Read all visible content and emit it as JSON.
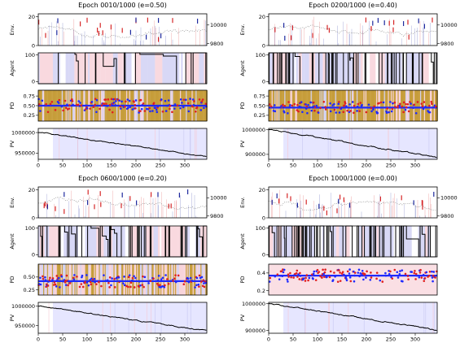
{
  "figure": {
    "colors": {
      "price_line": "#7a7a7a",
      "buy": "#d62728",
      "sell": "#1f2a9e",
      "hold_band": "#c8c8f2",
      "pink_band": "#f6c9d2",
      "gold_band": "#b8860b",
      "pd_blue": "#1f2aff",
      "pd_red": "#e02020",
      "pv_line": "#000000",
      "pv_fill": "#dcdcff"
    }
  },
  "chart_data": [
    {
      "type": "line",
      "title": "Epoch 0010/1000 (e=0.50)",
      "x_range": [
        0,
        345
      ],
      "x_ticks": [
        "0",
        "50",
        "100",
        "150",
        "200",
        "250",
        "300"
      ],
      "x_tick_values": [
        0,
        50,
        100,
        150,
        200,
        250,
        300
      ],
      "env": {
        "ylabel": "Env.",
        "left_ticks": [
          "0",
          "20"
        ],
        "left_range": [
          0,
          22
        ],
        "right_ticks": [
          "9800",
          "10000"
        ],
        "right_range": [
          9780,
          10120
        ]
      },
      "agent": {
        "ylabel": "Agent",
        "ticks": [
          "0",
          "100"
        ],
        "range": [
          0,
          100
        ]
      },
      "pd": {
        "ylabel": "PD",
        "ticks": [
          "0.25",
          "0.50",
          "0.75"
        ],
        "tick_values": [
          0.25,
          0.5,
          0.75
        ],
        "range": [
          0.1,
          0.9
        ],
        "baseline": 0.5,
        "spread": 0.18,
        "background": "gold"
      },
      "pv": {
        "ylabel": "PV",
        "ticks": [
          "950000",
          "1000000"
        ],
        "tick_values": [
          950000,
          1000000
        ],
        "range": [
          935000,
          1010000
        ],
        "start": 1000000,
        "end": 940000
      }
    },
    {
      "type": "line",
      "title": "Epoch 0200/1000 (e=0.40)",
      "x_range": [
        0,
        345
      ],
      "x_ticks": [
        "0",
        "50",
        "100",
        "150",
        "200",
        "250",
        "300"
      ],
      "x_tick_values": [
        0,
        50,
        100,
        150,
        200,
        250,
        300
      ],
      "env": {
        "ylabel": "Env.",
        "left_ticks": [
          "0",
          "20"
        ],
        "left_range": [
          0,
          22
        ],
        "right_ticks": [
          "9800",
          "10000"
        ],
        "right_range": [
          9780,
          10120
        ]
      },
      "agent": {
        "ylabel": "Agent",
        "ticks": [
          "0",
          "100"
        ],
        "range": [
          0,
          100
        ]
      },
      "pd": {
        "ylabel": "PD",
        "ticks": [
          "0.25",
          "0.50",
          "0.75"
        ],
        "tick_values": [
          0.25,
          0.5,
          0.75
        ],
        "range": [
          0.1,
          0.9
        ],
        "baseline": 0.45,
        "spread": 0.15,
        "background": "gold"
      },
      "pv": {
        "ylabel": "PV",
        "ticks": [
          "900000",
          "1000000"
        ],
        "tick_values": [
          900000,
          1000000
        ],
        "range": [
          880000,
          1005000
        ],
        "start": 1000000,
        "end": 885000
      }
    },
    {
      "type": "line",
      "title": "Epoch 0600/1000 (e=0.20)",
      "x_range": [
        0,
        345
      ],
      "x_ticks": [
        "0",
        "50",
        "100",
        "150",
        "200",
        "250",
        "300"
      ],
      "x_tick_values": [
        0,
        50,
        100,
        150,
        200,
        250,
        300
      ],
      "env": {
        "ylabel": "Env.",
        "left_ticks": [
          "0",
          "20"
        ],
        "left_range": [
          0,
          22
        ],
        "right_ticks": [
          "9800",
          "10000"
        ],
        "right_range": [
          9780,
          10120
        ]
      },
      "agent": {
        "ylabel": "Agent",
        "ticks": [
          "0",
          "100"
        ],
        "range": [
          0,
          100
        ]
      },
      "pd": {
        "ylabel": "PD",
        "ticks": [
          "0.25",
          "0.50"
        ],
        "tick_values": [
          0.25,
          0.5
        ],
        "range": [
          0.15,
          0.75
        ],
        "baseline": 0.42,
        "spread": 0.12,
        "background": "mixed"
      },
      "pv": {
        "ylabel": "PV",
        "ticks": [
          "950000",
          "1000000"
        ],
        "tick_values": [
          950000,
          1000000
        ],
        "range": [
          930000,
          1010000
        ],
        "start": 1000000,
        "end": 935000
      }
    },
    {
      "type": "line",
      "title": "Epoch 1000/1000 (e=0.00)",
      "x_range": [
        0,
        345
      ],
      "x_ticks": [
        "0",
        "50",
        "100",
        "150",
        "200",
        "250",
        "300"
      ],
      "x_tick_values": [
        0,
        50,
        100,
        150,
        200,
        250,
        300
      ],
      "env": {
        "ylabel": "Env.",
        "left_ticks": [
          "0",
          "20"
        ],
        "left_range": [
          0,
          22
        ],
        "right_ticks": [
          "9800",
          "10000"
        ],
        "right_range": [
          9780,
          10120
        ]
      },
      "agent": {
        "ylabel": "Agent",
        "ticks": [
          "0",
          "100"
        ],
        "range": [
          0,
          100
        ]
      },
      "pd": {
        "ylabel": "PD",
        "ticks": [
          "0.2",
          "0.4"
        ],
        "tick_values": [
          0.2,
          0.4
        ],
        "range": [
          0.15,
          0.5
        ],
        "baseline": 0.37,
        "spread": 0.07,
        "background": "pink"
      },
      "pv": {
        "ylabel": "PV",
        "ticks": [
          "900000",
          "1000000"
        ],
        "tick_values": [
          900000,
          1000000
        ],
        "range": [
          890000,
          1005000
        ],
        "start": 1000000,
        "end": 900000
      }
    }
  ]
}
